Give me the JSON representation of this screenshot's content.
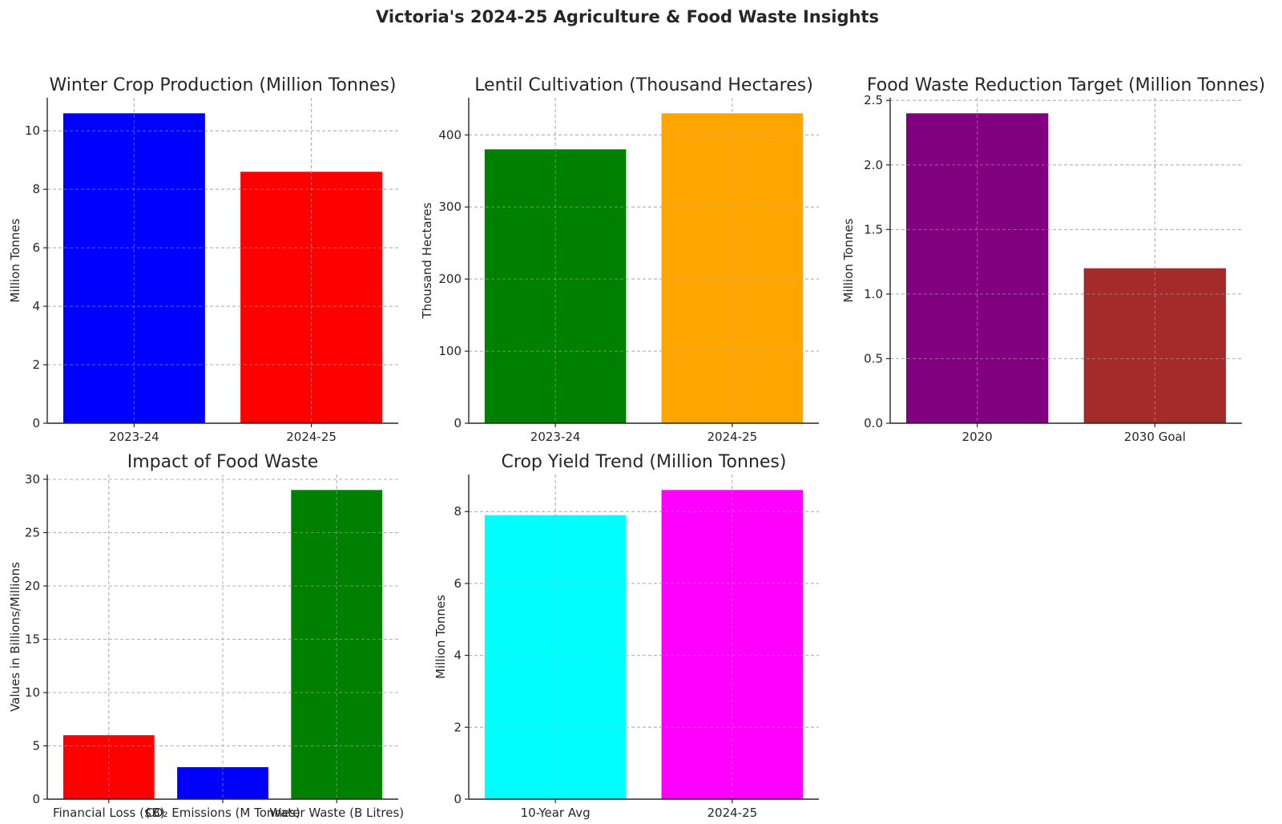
{
  "title": "Victoria's 2024-25 Agriculture & Food Waste Insights",
  "chart_data": [
    {
      "type": "bar",
      "title": "Winter Crop Production (Million Tonnes)",
      "ylabel": "Million Tonnes",
      "categories": [
        "2023-24",
        "2024-25"
      ],
      "values": [
        10.6,
        8.6
      ],
      "colors": [
        "#0000ff",
        "#ff0000"
      ],
      "ylim": [
        0,
        11.13
      ],
      "yticks": [
        0,
        2,
        4,
        6,
        8,
        10
      ],
      "grid": true
    },
    {
      "type": "bar",
      "title": "Lentil Cultivation (Thousand Hectares)",
      "ylabel": "Thousand Hectares",
      "categories": [
        "2023-24",
        "2024-25"
      ],
      "values": [
        380,
        430
      ],
      "colors": [
        "#008000",
        "#ffa500"
      ],
      "ylim": [
        0,
        451.5
      ],
      "yticks": [
        0,
        100,
        200,
        300,
        400
      ],
      "grid": true
    },
    {
      "type": "bar",
      "title": "Food Waste Reduction Target (Million Tonnes)",
      "ylabel": "Million Tonnes",
      "categories": [
        "2020",
        "2030 Goal"
      ],
      "values": [
        2.4,
        1.2
      ],
      "colors": [
        "#800080",
        "#a52a2a"
      ],
      "ylim": [
        0,
        2.52
      ],
      "yticks": [
        "0.0",
        "0.5",
        "1.0",
        "1.5",
        "2.0",
        "2.5"
      ],
      "grid": true
    },
    {
      "type": "bar",
      "title": "Impact of Food Waste",
      "ylabel": "Values in Billions/Millions",
      "categories": [
        "Financial Loss ($B)",
        "CO₂ Emissions (M Tonnes)",
        "Water Waste (B Litres)"
      ],
      "values": [
        6,
        3,
        29
      ],
      "colors": [
        "#ff0000",
        "#0000ff",
        "#008000"
      ],
      "ylim": [
        0,
        30.45
      ],
      "yticks": [
        0,
        5,
        10,
        15,
        20,
        25,
        30
      ],
      "grid": true
    },
    {
      "type": "bar",
      "title": "Crop Yield Trend (Million Tonnes)",
      "ylabel": "Million Tonnes",
      "categories": [
        "10-Year Avg",
        "2024-25"
      ],
      "values": [
        7.9,
        8.6
      ],
      "colors": [
        "#00ffff",
        "#ff00ff"
      ],
      "ylim": [
        0,
        9.03
      ],
      "yticks": [
        0,
        2,
        4,
        6,
        8
      ],
      "grid": true
    }
  ]
}
